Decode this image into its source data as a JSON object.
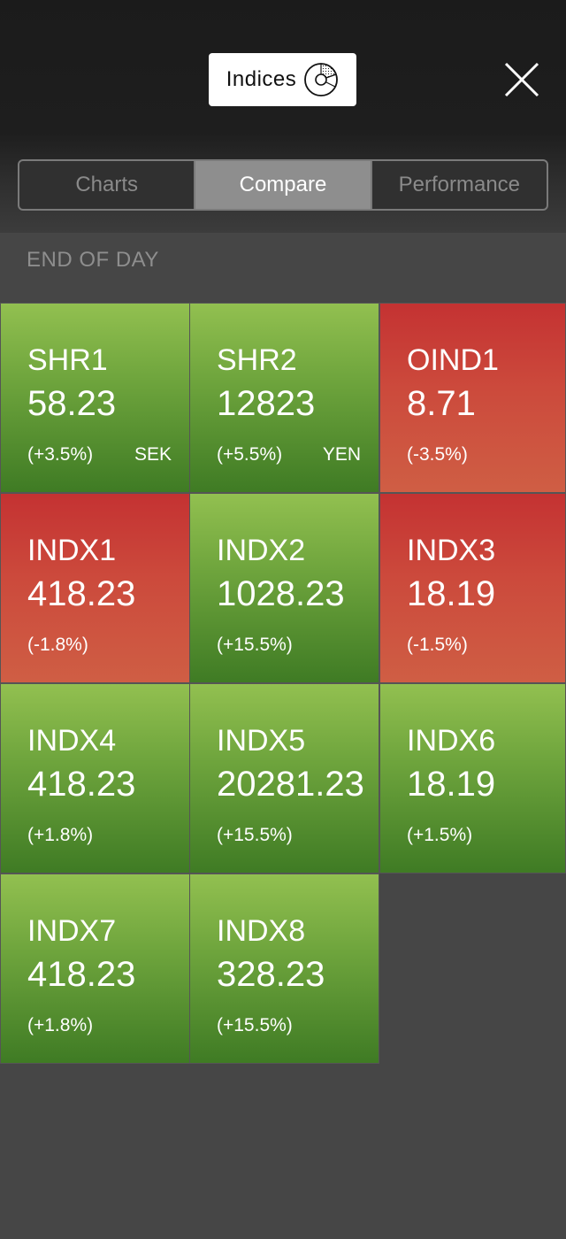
{
  "header": {
    "title": "Indices",
    "title_icon": "pie-chart-icon",
    "close_icon": "close-icon"
  },
  "tabs": [
    {
      "label": "Charts",
      "active": false
    },
    {
      "label": "Compare",
      "active": true
    },
    {
      "label": "Performance",
      "active": false
    }
  ],
  "section": {
    "title": "END OF DAY"
  },
  "colors": {
    "positive": "#6fa53d",
    "negative": "#cc4a3c",
    "background": "#464646"
  },
  "tiles": [
    {
      "name": "SHR1",
      "value": "58.23",
      "change": "(+3.5%)",
      "currency": "SEK",
      "trend": "up"
    },
    {
      "name": "SHR2",
      "value": "12823",
      "change": "(+5.5%)",
      "currency": "YEN",
      "trend": "up"
    },
    {
      "name": "OIND1",
      "value": "8.71",
      "change": "(-3.5%)",
      "currency": "",
      "trend": "down"
    },
    {
      "name": "INDX1",
      "value": "418.23",
      "change": "(-1.8%)",
      "currency": "",
      "trend": "down"
    },
    {
      "name": "INDX2",
      "value": "1028.23",
      "change": "(+15.5%)",
      "currency": "",
      "trend": "up"
    },
    {
      "name": "INDX3",
      "value": "18.19",
      "change": "(-1.5%)",
      "currency": "",
      "trend": "down"
    },
    {
      "name": "INDX4",
      "value": "418.23",
      "change": "(+1.8%)",
      "currency": "",
      "trend": "up"
    },
    {
      "name": "INDX5",
      "value": "20281.23",
      "change": "(+15.5%)",
      "currency": "",
      "trend": "up"
    },
    {
      "name": "INDX6",
      "value": "18.19",
      "change": "(+1.5%)",
      "currency": "",
      "trend": "up"
    },
    {
      "name": "INDX7",
      "value": "418.23",
      "change": "(+1.8%)",
      "currency": "",
      "trend": "up"
    },
    {
      "name": "INDX8",
      "value": "328.23",
      "change": "(+15.5%)",
      "currency": "",
      "trend": "up"
    }
  ]
}
